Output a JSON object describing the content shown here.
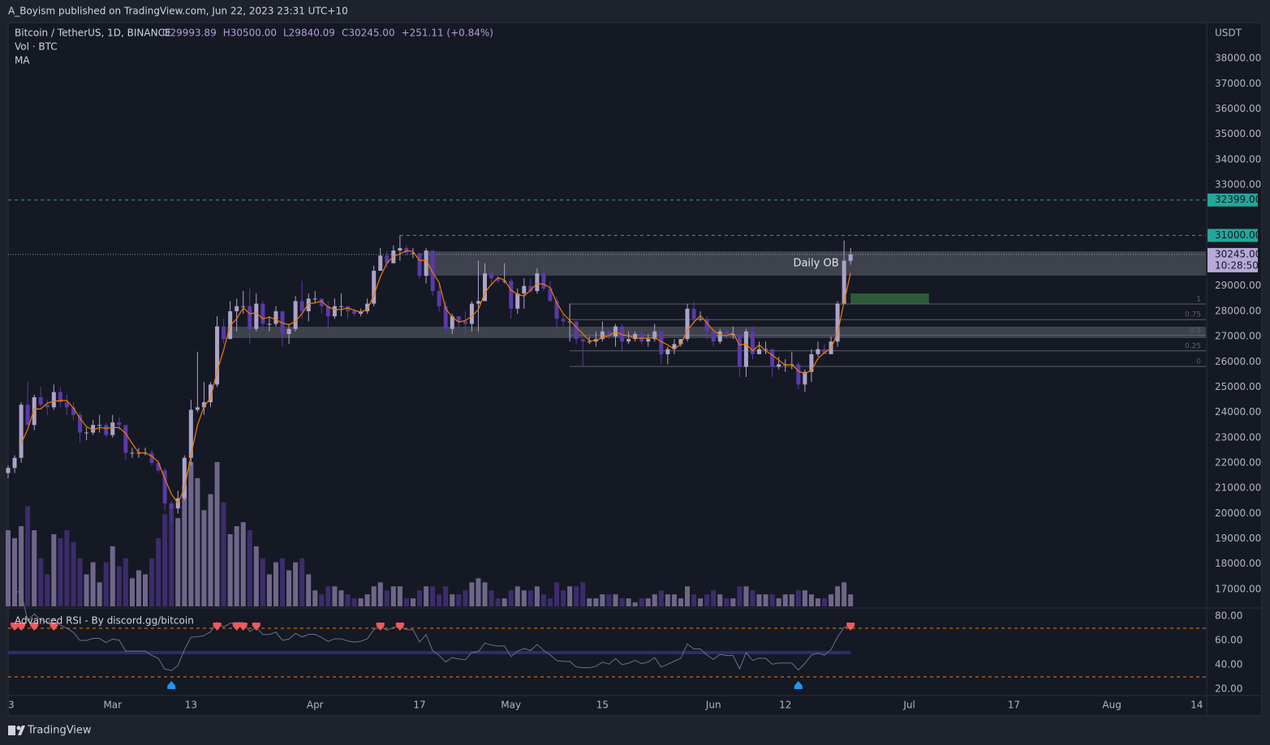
{
  "header": {
    "publisher": "A_Boyism published on TradingView.com, Jun 22, 2023 23:31 UTC+10"
  },
  "chart_data": {
    "type": "candlestick",
    "symbol": "Bitcoin / TetherUS, 1D, BINANCE",
    "ohlc_legend": [
      "O29993.89",
      "H30500.00",
      "L29840.09",
      "C30245.00",
      "+251.11 (+0.84%)"
    ],
    "indicators": [
      "Vol · BTC",
      "MA"
    ],
    "y_axis_unit": "USDT",
    "up_color": "#aca3c9",
    "down_color": "#5a3aa8",
    "volume_up_color": "#6f6789",
    "volume_down_color": "#3d2c6c",
    "ma_color": "#f57c00",
    "candles": [
      [
        21600,
        21900,
        21400,
        21800
      ],
      [
        21800,
        22300,
        21600,
        22200
      ],
      [
        22200,
        24400,
        22000,
        24300
      ],
      [
        24300,
        25200,
        23500,
        23500
      ],
      [
        23500,
        24700,
        23300,
        24600
      ],
      [
        24600,
        25000,
        24200,
        24300
      ],
      [
        24300,
        24500,
        23900,
        24200
      ],
      [
        24200,
        25100,
        24100,
        24800
      ],
      [
        24800,
        25000,
        24200,
        24400
      ],
      [
        24400,
        24700,
        23900,
        24200
      ],
      [
        24200,
        24400,
        23700,
        23900
      ],
      [
        23900,
        24000,
        22800,
        23200
      ],
      [
        23200,
        23400,
        22900,
        23200
      ],
      [
        23200,
        23700,
        23100,
        23500
      ],
      [
        23500,
        23900,
        23200,
        23500
      ],
      [
        23500,
        23600,
        23000,
        23100
      ],
      [
        23100,
        23900,
        23000,
        23600
      ],
      [
        23600,
        23800,
        23300,
        23500
      ],
      [
        23500,
        23500,
        22100,
        22400
      ],
      [
        22400,
        22600,
        22200,
        22400
      ],
      [
        22400,
        22600,
        22200,
        22400
      ],
      [
        22400,
        22600,
        22300,
        22400
      ],
      [
        22400,
        22500,
        21900,
        22000
      ],
      [
        22000,
        22100,
        21600,
        21700
      ],
      [
        21700,
        21800,
        20100,
        20400
      ],
      [
        20400,
        20500,
        19600,
        20200
      ],
      [
        20200,
        20900,
        20000,
        20600
      ],
      [
        20600,
        22300,
        20500,
        22200
      ],
      [
        22200,
        24500,
        21900,
        24100
      ],
      [
        24100,
        26400,
        24000,
        24200
      ],
      [
        24200,
        25200,
        23900,
        24400
      ],
      [
        24400,
        25200,
        24200,
        25100
      ],
      [
        25100,
        27800,
        25000,
        27400
      ],
      [
        27400,
        27700,
        26700,
        26900
      ],
      [
        26900,
        28400,
        26900,
        28000
      ],
      [
        28000,
        28500,
        27200,
        28200
      ],
      [
        28200,
        28800,
        27900,
        28200
      ],
      [
        28200,
        28900,
        26700,
        27300
      ],
      [
        27300,
        28700,
        27200,
        28300
      ],
      [
        28300,
        28400,
        27200,
        27500
      ],
      [
        27500,
        27800,
        27200,
        27500
      ],
      [
        27500,
        28200,
        27400,
        28000
      ],
      [
        28000,
        28000,
        26600,
        27100
      ],
      [
        27100,
        27500,
        26700,
        27300
      ],
      [
        27300,
        28600,
        27200,
        28400
      ],
      [
        28400,
        29200,
        27700,
        28000
      ],
      [
        28000,
        28700,
        27600,
        28500
      ],
      [
        28500,
        28800,
        28300,
        28500
      ],
      [
        28500,
        28500,
        27900,
        28200
      ],
      [
        28200,
        28400,
        27300,
        27800
      ],
      [
        27800,
        28500,
        27700,
        28200
      ],
      [
        28200,
        28700,
        27800,
        28200
      ],
      [
        28200,
        28200,
        27700,
        28000
      ],
      [
        28000,
        28100,
        27800,
        27900
      ],
      [
        27900,
        28100,
        27800,
        28000
      ],
      [
        28000,
        28500,
        27900,
        28300
      ],
      [
        28300,
        29800,
        28200,
        29600
      ],
      [
        29600,
        30500,
        29600,
        30200
      ],
      [
        30200,
        30400,
        29700,
        29900
      ],
      [
        29900,
        30600,
        29900,
        30400
      ],
      [
        30400,
        31000,
        30000,
        30500
      ],
      [
        30500,
        30600,
        30200,
        30300
      ],
      [
        30300,
        30500,
        30100,
        30300
      ],
      [
        30300,
        30300,
        29300,
        29400
      ],
      [
        29400,
        30500,
        29100,
        30400
      ],
      [
        30400,
        30400,
        28600,
        28800
      ],
      [
        28800,
        29100,
        28000,
        28200
      ],
      [
        28200,
        28400,
        27100,
        27300
      ],
      [
        27300,
        27900,
        27100,
        27800
      ],
      [
        27800,
        27800,
        27300,
        27600
      ],
      [
        27600,
        28000,
        27000,
        27500
      ],
      [
        27500,
        28400,
        27200,
        28300
      ],
      [
        28300,
        30000,
        27200,
        28400
      ],
      [
        28400,
        29900,
        28400,
        29500
      ],
      [
        29500,
        29600,
        29000,
        29300
      ],
      [
        29300,
        29400,
        29100,
        29200
      ],
      [
        29200,
        29900,
        29100,
        29200
      ],
      [
        29200,
        29300,
        27700,
        28100
      ],
      [
        28100,
        28900,
        27900,
        28700
      ],
      [
        28700,
        29300,
        28100,
        29000
      ],
      [
        29000,
        29300,
        28700,
        28800
      ],
      [
        28800,
        29700,
        28700,
        29500
      ],
      [
        29500,
        29800,
        28800,
        28900
      ],
      [
        28900,
        29200,
        28400,
        28400
      ],
      [
        28400,
        28600,
        27300,
        27700
      ],
      [
        27700,
        27900,
        27400,
        27600
      ],
      [
        27600,
        28300,
        26800,
        27600
      ],
      [
        27600,
        27600,
        26700,
        26900
      ],
      [
        26900,
        26900,
        25800,
        26800
      ],
      [
        26800,
        27000,
        26700,
        26800
      ],
      [
        26800,
        27200,
        26600,
        26900
      ],
      [
        26900,
        27600,
        26800,
        27200
      ],
      [
        27200,
        27300,
        26900,
        27000
      ],
      [
        27000,
        27500,
        26600,
        27400
      ],
      [
        27400,
        27500,
        26400,
        26800
      ],
      [
        26800,
        27200,
        26700,
        26900
      ],
      [
        26900,
        27200,
        26800,
        27100
      ],
      [
        27100,
        27300,
        26700,
        26800
      ],
      [
        26800,
        27100,
        26600,
        26900
      ],
      [
        26900,
        27500,
        26800,
        27200
      ],
      [
        27200,
        27200,
        25900,
        26300
      ],
      [
        26300,
        26600,
        25900,
        26500
      ],
      [
        26500,
        26900,
        26300,
        26700
      ],
      [
        26700,
        26900,
        26600,
        26900
      ],
      [
        26900,
        28300,
        26800,
        28100
      ],
      [
        28100,
        28400,
        27500,
        27700
      ],
      [
        27700,
        28000,
        27600,
        27700
      ],
      [
        27700,
        27800,
        26900,
        27200
      ],
      [
        27200,
        27300,
        26600,
        26800
      ],
      [
        26800,
        27300,
        26700,
        27200
      ],
      [
        27200,
        27300,
        26900,
        27100
      ],
      [
        27100,
        27400,
        26900,
        27100
      ],
      [
        27100,
        27100,
        25400,
        25800
      ],
      [
        25800,
        27300,
        25400,
        27200
      ],
      [
        27200,
        27400,
        26100,
        26300
      ],
      [
        26300,
        26800,
        26300,
        26500
      ],
      [
        26500,
        26800,
        26300,
        26500
      ],
      [
        26500,
        26500,
        25400,
        25800
      ],
      [
        25800,
        26200,
        25700,
        25900
      ],
      [
        25900,
        26100,
        25600,
        25900
      ],
      [
        25900,
        26400,
        25700,
        25900
      ],
      [
        25900,
        26000,
        24900,
        25100
      ],
      [
        25100,
        25700,
        24800,
        25600
      ],
      [
        25600,
        26500,
        25200,
        26300
      ],
      [
        26300,
        26800,
        26200,
        26500
      ],
      [
        26500,
        26700,
        26300,
        26300
      ],
      [
        26300,
        27000,
        26300,
        26800
      ],
      [
        26800,
        28400,
        26600,
        28300
      ],
      [
        28300,
        30800,
        28300,
        30000
      ],
      [
        29993.89,
        30500,
        29840.09,
        30245
      ]
    ],
    "volumes": [
      95,
      85,
      100,
      125,
      95,
      60,
      40,
      90,
      85,
      95,
      80,
      60,
      40,
      55,
      30,
      55,
      75,
      50,
      60,
      35,
      45,
      40,
      60,
      85,
      115,
      125,
      110,
      150,
      180,
      160,
      120,
      140,
      180,
      130,
      90,
      100,
      105,
      95,
      75,
      60,
      40,
      55,
      60,
      45,
      55,
      60,
      40,
      20,
      15,
      25,
      25,
      20,
      15,
      10,
      10,
      15,
      25,
      30,
      20,
      25,
      25,
      10,
      10,
      20,
      25,
      25,
      15,
      25,
      15,
      15,
      20,
      30,
      35,
      30,
      20,
      10,
      10,
      20,
      25,
      20,
      20,
      25,
      15,
      10,
      30,
      20,
      25,
      25,
      30,
      10,
      10,
      15,
      15,
      15,
      10,
      10,
      5,
      10,
      10,
      15,
      20,
      15,
      15,
      10,
      25,
      15,
      10,
      15,
      20,
      15,
      10,
      10,
      25,
      25,
      20,
      15,
      15,
      15,
      10,
      15,
      15,
      20,
      20,
      15,
      10,
      10,
      15,
      25,
      30,
      15
    ],
    "xlim": [
      0,
      183.4
    ],
    "xticks": [
      {
        "value": 0,
        "label": "3"
      },
      {
        "value": 16,
        "label": "Mar"
      },
      {
        "value": 28,
        "label": "13"
      },
      {
        "value": 47,
        "label": "Apr"
      },
      {
        "value": 63,
        "label": "17"
      },
      {
        "value": 77,
        "label": "May"
      },
      {
        "value": 91,
        "label": "15"
      },
      {
        "value": 108,
        "label": "Jun"
      },
      {
        "value": 119,
        "label": "12"
      },
      {
        "value": 138,
        "label": "Jul"
      },
      {
        "value": 154,
        "label": "17"
      },
      {
        "value": 169,
        "label": "Aug"
      },
      {
        "value": 182,
        "label": "14"
      }
    ],
    "ylim": [
      16260,
      39350
    ],
    "yticks": [
      {
        "value": 17000,
        "label": "17000.00"
      },
      {
        "value": 18000,
        "label": "18000.00"
      },
      {
        "value": 19000,
        "label": "19000.00"
      },
      {
        "value": 20000,
        "label": "20000.00"
      },
      {
        "value": 21000,
        "label": "21000.00"
      },
      {
        "value": 22000,
        "label": "22000.00"
      },
      {
        "value": 23000,
        "label": "23000.00"
      },
      {
        "value": 24000,
        "label": "24000.00"
      },
      {
        "value": 25000,
        "label": "25000.00"
      },
      {
        "value": 26000,
        "label": "26000.00"
      },
      {
        "value": 27000,
        "label": "27000.00"
      },
      {
        "value": 28000,
        "label": "28000.00"
      },
      {
        "value": 29000,
        "label": "29000.00"
      },
      {
        "value": 33000,
        "label": "33000.00"
      },
      {
        "value": 34000,
        "label": "34000.00"
      },
      {
        "value": 35000,
        "label": "35000.00"
      },
      {
        "value": 36000,
        "label": "36000.00"
      },
      {
        "value": 37000,
        "label": "37000.00"
      },
      {
        "value": 38000,
        "label": "38000.00"
      }
    ],
    "levels": [
      {
        "value": 32399,
        "label": "32399.00",
        "color": "#26a69a"
      },
      {
        "value": 31000,
        "label": "31000.00",
        "color": "#26a69a",
        "start": 60
      }
    ],
    "last_price": {
      "value": 30245,
      "label": "30245.00",
      "countdown": "10:28:50",
      "color": "#b7a8d8"
    },
    "zones": [
      {
        "label": "Daily OB",
        "from": 29409,
        "to": 30371,
        "start": 64
      },
      {
        "from": 26939,
        "to": 27388,
        "start": 33.5
      }
    ],
    "green_box": {
      "from": 28286,
      "to": 28703,
      "start": 129,
      "end": 141,
      "color": "#2e5a3a"
    },
    "fib": {
      "start": 86,
      "levels": [
        {
          "label": "1",
          "value": 28286
        },
        {
          "label": "0.75",
          "value": 27669
        },
        {
          "label": "0.5",
          "value": 27052
        },
        {
          "label": "0.25",
          "value": 26434
        },
        {
          "label": "0",
          "value": 25817
        }
      ]
    },
    "rsi": {
      "title": "Advanced RSI - By discord.gg/bitcoin",
      "ylim": [
        14.7,
        86
      ],
      "yticks": [
        {
          "value": 80,
          "label": "80.00"
        },
        {
          "value": 60,
          "label": "60.00"
        },
        {
          "value": 40,
          "label": "40.00"
        },
        {
          "value": 20,
          "label": "20.00"
        }
      ],
      "overbought": 70,
      "oversold": 30,
      "mid": 50
    }
  },
  "footer": {
    "brand": "TradingView"
  }
}
